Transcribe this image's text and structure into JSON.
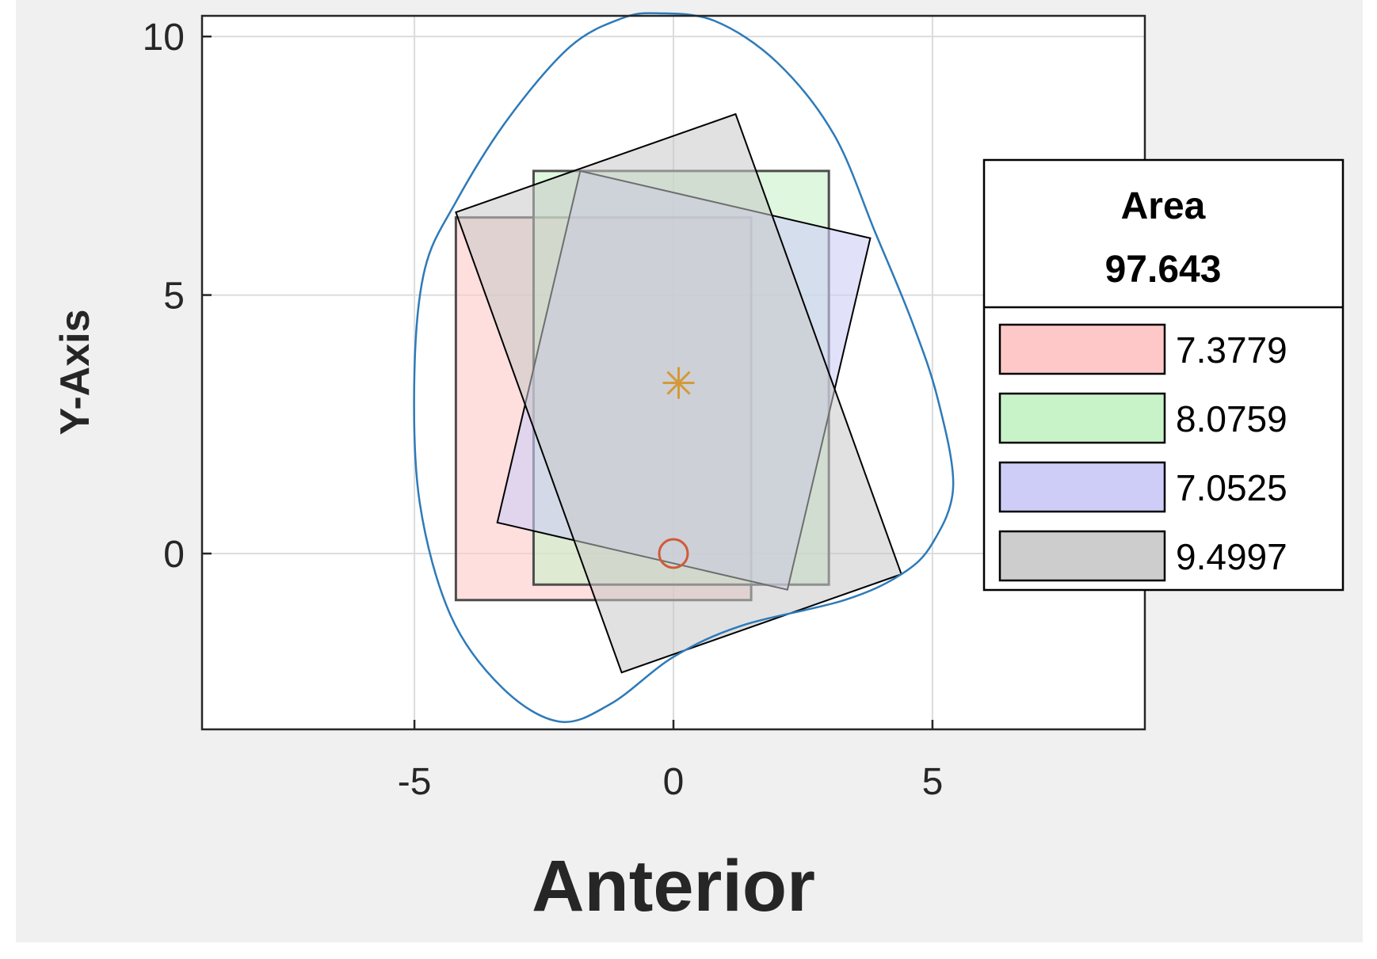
{
  "chart_data": {
    "type": "scatter",
    "xlabel": "Anterior",
    "ylabel": "Y-Axis",
    "xlim": [
      -9.1,
      9.1
    ],
    "ylim": [
      -3.4,
      10.4
    ],
    "xticks": [
      -5,
      0,
      5
    ],
    "xtick_labels": [
      "-5",
      "0",
      "5"
    ],
    "yticks": [
      0,
      5,
      10
    ],
    "ytick_labels": [
      "0",
      "5",
      "10"
    ],
    "grid": true,
    "background": "#f0f0f0",
    "legend": {
      "placement": "right",
      "title_line1": "Area",
      "title_line2": "97.643",
      "entries": [
        {
          "label": "7.3779",
          "fill": "#ffc8c8",
          "edge": "#000000"
        },
        {
          "label": "8.0759",
          "fill": "#c8f2c8",
          "edge": "#000000"
        },
        {
          "label": "7.0525",
          "fill": "#cdcdf7",
          "edge": "#000000"
        },
        {
          "label": "9.4997",
          "fill": "#cdcdcd",
          "edge": "#000000"
        }
      ]
    },
    "rectangles": [
      {
        "fill": "#ffc8c8",
        "opacity": 0.6,
        "edge": "#4d4d4d",
        "edge_width": 3,
        "points": [
          [
            -4.2,
            6.5
          ],
          [
            1.5,
            6.5
          ],
          [
            1.5,
            -0.9
          ],
          [
            -4.2,
            -0.9
          ]
        ]
      },
      {
        "fill": "#c8f2c8",
        "opacity": 0.6,
        "edge": "#4d4d4d",
        "edge_width": 3,
        "points": [
          [
            -2.7,
            7.4
          ],
          [
            3.0,
            7.4
          ],
          [
            3.0,
            -0.6
          ],
          [
            -2.7,
            -0.6
          ]
        ]
      },
      {
        "fill": "#cdcdf7",
        "opacity": 0.6,
        "edge": "#000000",
        "edge_width": 2,
        "points": [
          [
            -1.8,
            7.4
          ],
          [
            3.8,
            6.1
          ],
          [
            2.2,
            -0.7
          ],
          [
            -3.4,
            0.6
          ]
        ]
      },
      {
        "fill": "#c8c8c8",
        "opacity": 0.55,
        "edge": "#000000",
        "edge_width": 2,
        "points": [
          [
            -4.2,
            6.6
          ],
          [
            1.2,
            8.5
          ],
          [
            4.4,
            -0.4
          ],
          [
            -1.0,
            -2.3
          ]
        ]
      }
    ],
    "boundary_curve": {
      "color": "#2e7ab8",
      "points": [
        [
          -0.3,
          10.45
        ],
        [
          0.8,
          10.3
        ],
        [
          2.0,
          9.5
        ],
        [
          3.1,
          8.1
        ],
        [
          3.9,
          6.2
        ],
        [
          4.6,
          4.5
        ],
        [
          5.1,
          3.0
        ],
        [
          5.4,
          1.3
        ],
        [
          5.0,
          0.2
        ],
        [
          4.4,
          -0.4
        ],
        [
          3.3,
          -0.9
        ],
        [
          1.3,
          -1.4
        ],
        [
          0.0,
          -2.0
        ],
        [
          -1.2,
          -2.9
        ],
        [
          -2.2,
          -3.25
        ],
        [
          -3.3,
          -2.6
        ],
        [
          -4.3,
          -1.2
        ],
        [
          -4.9,
          1.0
        ],
        [
          -5.0,
          3.5
        ],
        [
          -4.8,
          5.5
        ],
        [
          -4.2,
          6.8
        ],
        [
          -3.2,
          8.4
        ],
        [
          -2.0,
          9.8
        ],
        [
          -1.0,
          10.35
        ],
        [
          -0.3,
          10.45
        ]
      ]
    },
    "markers": [
      {
        "shape": "asterisk",
        "x": 0.1,
        "y": 3.3,
        "color": "#d49a3a"
      },
      {
        "shape": "circle",
        "x": 0.0,
        "y": 0.0,
        "color": "#d05a3a"
      }
    ]
  }
}
